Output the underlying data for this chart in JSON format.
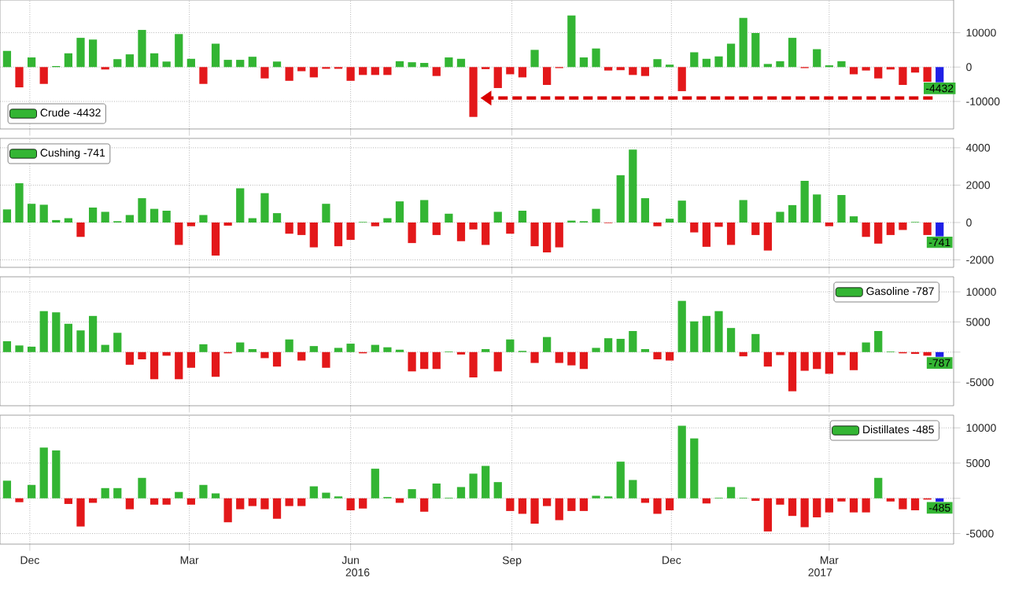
{
  "chart_data": [
    {
      "type": "bar",
      "grid": true,
      "legend": "bottom left",
      "tick_labels": "y",
      "x": [
        "2015-11-18",
        "2015-11-25",
        "2015-12-02",
        "2015-12-09",
        "2015-12-16",
        "2015-12-23",
        "2015-12-30",
        "2016-01-06",
        "2016-01-13",
        "2016-01-20",
        "2016-01-27",
        "2016-02-03",
        "2016-02-10",
        "2016-02-17",
        "2016-02-24",
        "2016-03-02",
        "2016-03-09",
        "2016-03-16",
        "2016-03-23",
        "2016-03-30",
        "2016-04-06",
        "2016-04-13",
        "2016-04-20",
        "2016-04-27",
        "2016-05-04",
        "2016-05-11",
        "2016-05-18",
        "2016-05-25",
        "2016-06-01",
        "2016-06-08",
        "2016-06-15",
        "2016-06-22",
        "2016-06-29",
        "2016-07-06",
        "2016-07-13",
        "2016-07-20",
        "2016-07-27",
        "2016-08-03",
        "2016-08-10",
        "2016-08-17",
        "2016-08-24",
        "2016-08-31",
        "2016-09-07",
        "2016-09-14",
        "2016-09-21",
        "2016-09-28",
        "2016-10-05",
        "2016-10-12",
        "2016-10-19",
        "2016-10-26",
        "2016-11-02",
        "2016-11-09",
        "2016-11-16",
        "2016-11-23",
        "2016-11-30",
        "2016-12-07",
        "2016-12-14",
        "2016-12-21",
        "2016-12-28",
        "2017-01-04",
        "2017-01-11",
        "2017-01-18",
        "2017-01-25",
        "2017-02-01",
        "2017-02-08",
        "2017-02-15",
        "2017-02-22",
        "2017-03-01",
        "2017-03-08",
        "2017-03-15",
        "2017-03-22",
        "2017-03-29",
        "2017-04-05",
        "2017-04-12",
        "2017-04-19",
        "2017-04-26",
        "2017-05-03"
      ],
      "xlim": [
        "2015-11-14",
        "2017-05-11"
      ],
      "xticks": [
        {
          "value": "2015-12-01",
          "label": null
        },
        {
          "value": "2016-03-01",
          "label": null
        },
        {
          "value": "2016-06-01",
          "label": null
        },
        {
          "value": "2016-09-01",
          "label": null
        },
        {
          "value": "2016-12-01",
          "label": null
        },
        {
          "value": "2017-03-01",
          "label": null
        }
      ],
      "ylim": [
        -18000,
        19500
      ],
      "yticks": [
        10000,
        0,
        -10000
      ],
      "series": [
        {
          "name": "Crude -4432",
          "color": "#33b533",
          "values": [
            4700,
            -5900,
            2800,
            -4900,
            300,
            4000,
            8500,
            8000,
            -700,
            2300,
            3700,
            10800,
            4000,
            1600,
            9600,
            2400,
            -4900,
            6800,
            2100,
            2100,
            3000,
            -3300,
            1600,
            -4000,
            -1200,
            -3000,
            -500,
            -500,
            -4000,
            -2300,
            -2300,
            -2300,
            1700,
            1400,
            1200,
            -2600,
            2800,
            2400,
            -14500,
            -600,
            -6100,
            -2100,
            -3000,
            5000,
            -5200,
            -300,
            15000,
            2800,
            5400,
            -1000,
            -900,
            -2300,
            -2600,
            2300,
            700,
            -7000,
            4300,
            2400,
            3100,
            6800,
            14300,
            9900,
            900,
            1700,
            8500,
            -300,
            5200,
            500,
            1700,
            -2100,
            -1000,
            -3300,
            -700,
            -5200,
            -1600,
            -4300,
            -4432
          ],
          "colors": [
            "#33b533",
            "#e3181a",
            "#33b533",
            "#e3181a",
            "#33b533",
            "#33b533",
            "#33b533",
            "#33b533",
            "#e3181a",
            "#33b533",
            "#33b533",
            "#33b533",
            "#33b533",
            "#33b533",
            "#33b533",
            "#33b533",
            "#e3181a",
            "#33b533",
            "#33b533",
            "#33b533",
            "#33b533",
            "#e3181a",
            "#33b533",
            "#e3181a",
            "#e3181a",
            "#e3181a",
            "#e3181a",
            "#e3181a",
            "#e3181a",
            "#e3181a",
            "#e3181a",
            "#e3181a",
            "#33b533",
            "#33b533",
            "#33b533",
            "#e3181a",
            "#33b533",
            "#33b533",
            "#e3181a",
            "#e3181a",
            "#e3181a",
            "#e3181a",
            "#e3181a",
            "#33b533",
            "#e3181a",
            "#e3181a",
            "#33b533",
            "#33b533",
            "#33b533",
            "#e3181a",
            "#e3181a",
            "#e3181a",
            "#e3181a",
            "#33b533",
            "#33b533",
            "#e3181a",
            "#33b533",
            "#33b533",
            "#33b533",
            "#33b533",
            "#33b533",
            "#33b533",
            "#33b533",
            "#33b533",
            "#33b533",
            "#e3181a",
            "#33b533",
            "#33b533",
            "#33b533",
            "#e3181a",
            "#e3181a",
            "#e3181a",
            "#e3181a",
            "#e3181a",
            "#e3181a",
            "#e3181a",
            "#1f1fe6"
          ],
          "value_labels": [
            null,
            null,
            null,
            null,
            null,
            null,
            null,
            null,
            null,
            null,
            null,
            null,
            null,
            null,
            null,
            null,
            null,
            null,
            null,
            null,
            null,
            null,
            null,
            null,
            null,
            null,
            null,
            null,
            null,
            null,
            null,
            null,
            null,
            null,
            null,
            null,
            null,
            null,
            null,
            null,
            null,
            null,
            null,
            null,
            null,
            null,
            null,
            null,
            null,
            null,
            null,
            null,
            null,
            null,
            null,
            null,
            null,
            null,
            null,
            null,
            null,
            null,
            null,
            null,
            null,
            null,
            null,
            null,
            null,
            null,
            null,
            null,
            null,
            null,
            null,
            null,
            "-4432"
          ]
        }
      ]
    },
    {
      "type": "bar",
      "grid": true,
      "legend": "top left",
      "tick_labels": "y",
      "x": [
        "2015-11-18",
        "2015-11-25",
        "2015-12-02",
        "2015-12-09",
        "2015-12-16",
        "2015-12-23",
        "2015-12-30",
        "2016-01-06",
        "2016-01-13",
        "2016-01-20",
        "2016-01-27",
        "2016-02-03",
        "2016-02-10",
        "2016-02-17",
        "2016-02-24",
        "2016-03-02",
        "2016-03-09",
        "2016-03-16",
        "2016-03-23",
        "2016-03-30",
        "2016-04-06",
        "2016-04-13",
        "2016-04-20",
        "2016-04-27",
        "2016-05-04",
        "2016-05-11",
        "2016-05-18",
        "2016-05-25",
        "2016-06-01",
        "2016-06-08",
        "2016-06-15",
        "2016-06-22",
        "2016-06-29",
        "2016-07-06",
        "2016-07-13",
        "2016-07-20",
        "2016-07-27",
        "2016-08-03",
        "2016-08-10",
        "2016-08-17",
        "2016-08-24",
        "2016-08-31",
        "2016-09-07",
        "2016-09-14",
        "2016-09-21",
        "2016-09-28",
        "2016-10-05",
        "2016-10-12",
        "2016-10-19",
        "2016-10-26",
        "2016-11-02",
        "2016-11-09",
        "2016-11-16",
        "2016-11-23",
        "2016-11-30",
        "2016-12-07",
        "2016-12-14",
        "2016-12-21",
        "2016-12-28",
        "2017-01-04",
        "2017-01-11",
        "2017-01-18",
        "2017-01-25",
        "2017-02-01",
        "2017-02-08",
        "2017-02-15",
        "2017-02-22",
        "2017-03-01",
        "2017-03-08",
        "2017-03-15",
        "2017-03-22",
        "2017-03-29",
        "2017-04-05",
        "2017-04-12",
        "2017-04-19",
        "2017-04-26",
        "2017-05-03"
      ],
      "xlim": [
        "2015-11-14",
        "2017-05-11"
      ],
      "xticks": [
        {
          "value": "2015-12-01",
          "label": null
        },
        {
          "value": "2016-03-01",
          "label": null
        },
        {
          "value": "2016-06-01",
          "label": null
        },
        {
          "value": "2016-09-01",
          "label": null
        },
        {
          "value": "2016-12-01",
          "label": null
        },
        {
          "value": "2017-03-01",
          "label": null
        }
      ],
      "ylim": [
        -2400,
        4500
      ],
      "yticks": [
        4000,
        2000,
        0,
        -2000
      ],
      "series": [
        {
          "name": "Cushing -741",
          "color": "#33b533",
          "values": [
            700,
            2100,
            1000,
            950,
            130,
            230,
            -770,
            800,
            570,
            70,
            400,
            1300,
            730,
            630,
            -1200,
            -200,
            400,
            -1770,
            -170,
            1830,
            230,
            1570,
            500,
            -600,
            -670,
            -1330,
            1000,
            -1270,
            -930,
            30,
            -200,
            230,
            1130,
            -1100,
            1200,
            -670,
            470,
            -1000,
            -370,
            -1200,
            570,
            -600,
            630,
            -1270,
            -1600,
            -1330,
            100,
            70,
            730,
            -30,
            2530,
            3900,
            1300,
            -200,
            200,
            1170,
            -530,
            -1300,
            -230,
            -1200,
            1200,
            -670,
            -1500,
            570,
            930,
            2230,
            1500,
            -200,
            1470,
            330,
            -770,
            -1130,
            -670,
            -400,
            30,
            -670,
            -741
          ],
          "colors": [
            "#33b533",
            "#33b533",
            "#33b533",
            "#33b533",
            "#33b533",
            "#33b533",
            "#e3181a",
            "#33b533",
            "#33b533",
            "#33b533",
            "#33b533",
            "#33b533",
            "#33b533",
            "#33b533",
            "#e3181a",
            "#e3181a",
            "#33b533",
            "#e3181a",
            "#e3181a",
            "#33b533",
            "#33b533",
            "#33b533",
            "#33b533",
            "#e3181a",
            "#e3181a",
            "#e3181a",
            "#33b533",
            "#e3181a",
            "#e3181a",
            "#33b533",
            "#e3181a",
            "#33b533",
            "#33b533",
            "#e3181a",
            "#33b533",
            "#e3181a",
            "#33b533",
            "#e3181a",
            "#e3181a",
            "#e3181a",
            "#33b533",
            "#e3181a",
            "#33b533",
            "#e3181a",
            "#e3181a",
            "#e3181a",
            "#33b533",
            "#33b533",
            "#33b533",
            "#e3181a",
            "#33b533",
            "#33b533",
            "#33b533",
            "#e3181a",
            "#33b533",
            "#33b533",
            "#e3181a",
            "#e3181a",
            "#e3181a",
            "#e3181a",
            "#33b533",
            "#e3181a",
            "#e3181a",
            "#33b533",
            "#33b533",
            "#33b533",
            "#33b533",
            "#e3181a",
            "#33b533",
            "#33b533",
            "#e3181a",
            "#e3181a",
            "#e3181a",
            "#e3181a",
            "#33b533",
            "#e3181a",
            "#1f1fe6"
          ],
          "value_labels": [
            null,
            null,
            null,
            null,
            null,
            null,
            null,
            null,
            null,
            null,
            null,
            null,
            null,
            null,
            null,
            null,
            null,
            null,
            null,
            null,
            null,
            null,
            null,
            null,
            null,
            null,
            null,
            null,
            null,
            null,
            null,
            null,
            null,
            null,
            null,
            null,
            null,
            null,
            null,
            null,
            null,
            null,
            null,
            null,
            null,
            null,
            null,
            null,
            null,
            null,
            null,
            null,
            null,
            null,
            null,
            null,
            null,
            null,
            null,
            null,
            null,
            null,
            null,
            null,
            null,
            null,
            null,
            null,
            null,
            null,
            null,
            null,
            null,
            null,
            null,
            null,
            "-741"
          ]
        }
      ]
    },
    {
      "type": "bar",
      "grid": true,
      "legend": "top right",
      "tick_labels": "y",
      "x": [
        "2015-11-18",
        "2015-11-25",
        "2015-12-02",
        "2015-12-09",
        "2015-12-16",
        "2015-12-23",
        "2015-12-30",
        "2016-01-06",
        "2016-01-13",
        "2016-01-20",
        "2016-01-27",
        "2016-02-03",
        "2016-02-10",
        "2016-02-17",
        "2016-02-24",
        "2016-03-02",
        "2016-03-09",
        "2016-03-16",
        "2016-03-23",
        "2016-03-30",
        "2016-04-06",
        "2016-04-13",
        "2016-04-20",
        "2016-04-27",
        "2016-05-04",
        "2016-05-11",
        "2016-05-18",
        "2016-05-25",
        "2016-06-01",
        "2016-06-08",
        "2016-06-15",
        "2016-06-22",
        "2016-06-29",
        "2016-07-06",
        "2016-07-13",
        "2016-07-20",
        "2016-07-27",
        "2016-08-03",
        "2016-08-10",
        "2016-08-17",
        "2016-08-24",
        "2016-08-31",
        "2016-09-07",
        "2016-09-14",
        "2016-09-21",
        "2016-09-28",
        "2016-10-05",
        "2016-10-12",
        "2016-10-19",
        "2016-10-26",
        "2016-11-02",
        "2016-11-09",
        "2016-11-16",
        "2016-11-23",
        "2016-11-30",
        "2016-12-07",
        "2016-12-14",
        "2016-12-21",
        "2016-12-28",
        "2017-01-04",
        "2017-01-11",
        "2017-01-18",
        "2017-01-25",
        "2017-02-01",
        "2017-02-08",
        "2017-02-15",
        "2017-02-22",
        "2017-03-01",
        "2017-03-08",
        "2017-03-15",
        "2017-03-22",
        "2017-03-29",
        "2017-04-05",
        "2017-04-12",
        "2017-04-19",
        "2017-04-26",
        "2017-05-03"
      ],
      "xlim": [
        "2015-11-14",
        "2017-05-11"
      ],
      "xticks": [
        {
          "value": "2015-12-01",
          "label": null
        },
        {
          "value": "2016-03-01",
          "label": null
        },
        {
          "value": "2016-06-01",
          "label": null
        },
        {
          "value": "2016-09-01",
          "label": null
        },
        {
          "value": "2016-12-01",
          "label": null
        },
        {
          "value": "2017-03-01",
          "label": null
        }
      ],
      "ylim": [
        -8900,
        12500
      ],
      "yticks": [
        10000,
        5000,
        {
          "value": 0,
          "label": null
        },
        -5000
      ],
      "series": [
        {
          "name": "Gasoline -787",
          "color": "#33b533",
          "values": [
            1800,
            1100,
            900,
            6800,
            6600,
            4700,
            3600,
            6000,
            1200,
            3200,
            -2100,
            -1200,
            -4500,
            -600,
            -4500,
            -2600,
            1300,
            -4100,
            -200,
            1600,
            500,
            -1000,
            -2400,
            2100,
            -1400,
            1000,
            -2600,
            700,
            1400,
            -200,
            1200,
            800,
            400,
            -3200,
            -2800,
            -2800,
            100,
            -400,
            -4200,
            500,
            -3200,
            2100,
            200,
            -1800,
            2500,
            -1800,
            -2200,
            -2800,
            700,
            2300,
            2200,
            3500,
            500,
            -1200,
            -1400,
            8500,
            5100,
            6000,
            6800,
            4000,
            -700,
            3000,
            -2400,
            -500,
            -6500,
            -3100,
            -2800,
            -3600,
            -500,
            -3000,
            1600,
            3500,
            100,
            -200,
            -300,
            -600,
            -787
          ],
          "colors": [
            "#33b533",
            "#33b533",
            "#33b533",
            "#33b533",
            "#33b533",
            "#33b533",
            "#33b533",
            "#33b533",
            "#33b533",
            "#33b533",
            "#e3181a",
            "#e3181a",
            "#e3181a",
            "#e3181a",
            "#e3181a",
            "#e3181a",
            "#33b533",
            "#e3181a",
            "#e3181a",
            "#33b533",
            "#33b533",
            "#e3181a",
            "#e3181a",
            "#33b533",
            "#e3181a",
            "#33b533",
            "#e3181a",
            "#33b533",
            "#33b533",
            "#e3181a",
            "#33b533",
            "#33b533",
            "#33b533",
            "#e3181a",
            "#e3181a",
            "#e3181a",
            "#33b533",
            "#e3181a",
            "#e3181a",
            "#33b533",
            "#e3181a",
            "#33b533",
            "#33b533",
            "#e3181a",
            "#33b533",
            "#e3181a",
            "#e3181a",
            "#e3181a",
            "#33b533",
            "#33b533",
            "#33b533",
            "#33b533",
            "#33b533",
            "#e3181a",
            "#e3181a",
            "#33b533",
            "#33b533",
            "#33b533",
            "#33b533",
            "#33b533",
            "#e3181a",
            "#33b533",
            "#e3181a",
            "#e3181a",
            "#e3181a",
            "#e3181a",
            "#e3181a",
            "#e3181a",
            "#e3181a",
            "#e3181a",
            "#33b533",
            "#33b533",
            "#33b533",
            "#e3181a",
            "#e3181a",
            "#e3181a",
            "#1f1fe6"
          ],
          "value_labels": [
            null,
            null,
            null,
            null,
            null,
            null,
            null,
            null,
            null,
            null,
            null,
            null,
            null,
            null,
            null,
            null,
            null,
            null,
            null,
            null,
            null,
            null,
            null,
            null,
            null,
            null,
            null,
            null,
            null,
            null,
            null,
            null,
            null,
            null,
            null,
            null,
            null,
            null,
            null,
            null,
            null,
            null,
            null,
            null,
            null,
            null,
            null,
            null,
            null,
            null,
            null,
            null,
            null,
            null,
            null,
            null,
            null,
            null,
            null,
            null,
            null,
            null,
            null,
            null,
            null,
            null,
            null,
            null,
            null,
            null,
            null,
            null,
            null,
            null,
            null,
            null,
            "-787"
          ]
        }
      ]
    },
    {
      "type": "bar",
      "grid": true,
      "legend": "top right",
      "x": [
        "2015-11-18",
        "2015-11-25",
        "2015-12-02",
        "2015-12-09",
        "2015-12-16",
        "2015-12-23",
        "2015-12-30",
        "2016-01-06",
        "2016-01-13",
        "2016-01-20",
        "2016-01-27",
        "2016-02-03",
        "2016-02-10",
        "2016-02-17",
        "2016-02-24",
        "2016-03-02",
        "2016-03-09",
        "2016-03-16",
        "2016-03-23",
        "2016-03-30",
        "2016-04-06",
        "2016-04-13",
        "2016-04-20",
        "2016-04-27",
        "2016-05-04",
        "2016-05-11",
        "2016-05-18",
        "2016-05-25",
        "2016-06-01",
        "2016-06-08",
        "2016-06-15",
        "2016-06-22",
        "2016-06-29",
        "2016-07-06",
        "2016-07-13",
        "2016-07-20",
        "2016-07-27",
        "2016-08-03",
        "2016-08-10",
        "2016-08-17",
        "2016-08-24",
        "2016-08-31",
        "2016-09-07",
        "2016-09-14",
        "2016-09-21",
        "2016-09-28",
        "2016-10-05",
        "2016-10-12",
        "2016-10-19",
        "2016-10-26",
        "2016-11-02",
        "2016-11-09",
        "2016-11-16",
        "2016-11-23",
        "2016-11-30",
        "2016-12-07",
        "2016-12-14",
        "2016-12-21",
        "2016-12-28",
        "2017-01-04",
        "2017-01-11",
        "2017-01-18",
        "2017-01-25",
        "2017-02-01",
        "2017-02-08",
        "2017-02-15",
        "2017-02-22",
        "2017-03-01",
        "2017-03-08",
        "2017-03-15",
        "2017-03-22",
        "2017-03-29",
        "2017-04-05",
        "2017-04-12",
        "2017-04-19",
        "2017-04-26",
        "2017-05-03"
      ],
      "xlim": [
        "2015-11-14",
        "2017-05-11"
      ],
      "xticks": [
        {
          "value": "2015-12-01",
          "label": "Dec"
        },
        {
          "value": "2016-03-01",
          "label": "Mar"
        },
        {
          "value": "2016-06-01",
          "label": "Jun"
        },
        {
          "value": "2016-09-01",
          "label": "Sep"
        },
        {
          "value": "2016-12-01",
          "label": "Dec"
        },
        {
          "value": "2017-03-01",
          "label": "Mar"
        }
      ],
      "ylim": [
        -6500,
        11800
      ],
      "yticks": [
        10000,
        5000,
        {
          "value": 0,
          "label": null
        },
        -5000
      ],
      "annotations": [
        "2016",
        "2017"
      ],
      "series": [
        {
          "name": "Distillates -485",
          "color": "#33b533",
          "values": [
            2500,
            -550,
            1900,
            7200,
            6800,
            -800,
            -4000,
            -640,
            1450,
            1450,
            -1550,
            2900,
            -900,
            -900,
            900,
            -900,
            1900,
            700,
            -3400,
            -1550,
            -1100,
            -1550,
            -2900,
            -1100,
            -1100,
            1700,
            800,
            270,
            -1700,
            -1450,
            4200,
            180,
            -640,
            1300,
            -1900,
            2100,
            90,
            1600,
            3500,
            4600,
            2300,
            -1800,
            -2200,
            -3600,
            -1100,
            -3100,
            -1800,
            -1800,
            360,
            270,
            5200,
            2600,
            -640,
            -2200,
            -1700,
            10300,
            8500,
            -730,
            90,
            1600,
            90,
            -360,
            -4700,
            -900,
            -2500,
            -4100,
            -2700,
            -2000,
            -450,
            -2000,
            -2000,
            2900,
            -450,
            -1550,
            -1700,
            -180,
            -485
          ],
          "colors": [
            "#33b533",
            "#e3181a",
            "#33b533",
            "#33b533",
            "#33b533",
            "#e3181a",
            "#e3181a",
            "#e3181a",
            "#33b533",
            "#33b533",
            "#e3181a",
            "#33b533",
            "#e3181a",
            "#e3181a",
            "#33b533",
            "#e3181a",
            "#33b533",
            "#33b533",
            "#e3181a",
            "#e3181a",
            "#e3181a",
            "#e3181a",
            "#e3181a",
            "#e3181a",
            "#e3181a",
            "#33b533",
            "#33b533",
            "#33b533",
            "#e3181a",
            "#e3181a",
            "#33b533",
            "#33b533",
            "#e3181a",
            "#33b533",
            "#e3181a",
            "#33b533",
            "#33b533",
            "#33b533",
            "#33b533",
            "#33b533",
            "#33b533",
            "#e3181a",
            "#e3181a",
            "#e3181a",
            "#e3181a",
            "#e3181a",
            "#e3181a",
            "#e3181a",
            "#33b533",
            "#33b533",
            "#33b533",
            "#33b533",
            "#e3181a",
            "#e3181a",
            "#e3181a",
            "#33b533",
            "#33b533",
            "#e3181a",
            "#33b533",
            "#33b533",
            "#33b533",
            "#e3181a",
            "#e3181a",
            "#e3181a",
            "#e3181a",
            "#e3181a",
            "#e3181a",
            "#e3181a",
            "#e3181a",
            "#e3181a",
            "#e3181a",
            "#33b533",
            "#e3181a",
            "#e3181a",
            "#e3181a",
            "#e3181a",
            "#1f1fe6"
          ],
          "value_labels": [
            null,
            null,
            null,
            null,
            null,
            null,
            null,
            null,
            null,
            null,
            null,
            null,
            null,
            null,
            null,
            null,
            null,
            null,
            null,
            null,
            null,
            null,
            null,
            null,
            null,
            null,
            null,
            null,
            null,
            null,
            null,
            null,
            null,
            null,
            null,
            null,
            null,
            null,
            null,
            null,
            null,
            null,
            null,
            null,
            null,
            null,
            null,
            null,
            null,
            null,
            null,
            null,
            null,
            null,
            null,
            null,
            null,
            null,
            null,
            null,
            null,
            null,
            null,
            null,
            null,
            null,
            null,
            null,
            null,
            null,
            null,
            null,
            null,
            null,
            null,
            null,
            "-485"
          ]
        }
      ]
    }
  ]
}
